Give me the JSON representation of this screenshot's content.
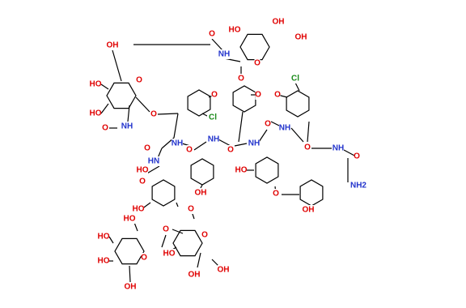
{
  "labels": [
    "O",
    "HO",
    "OH",
    "OH",
    "NH",
    "O",
    "O",
    "Cl",
    "O",
    "O",
    "O",
    "OH",
    "HO",
    "HO",
    "O",
    "NH",
    "O",
    "O",
    "Cl",
    "O",
    "HN",
    "HO",
    "O",
    "NH",
    "O",
    "NH",
    "O",
    "NH",
    "O",
    "NH",
    "O",
    "NH",
    "O",
    "NH2",
    "HO",
    "O",
    "OH",
    "OH",
    "HO",
    "O",
    "O",
    "HO",
    "HO",
    "O",
    "OH",
    "HO",
    "O",
    "OH",
    "OH",
    "HO"
  ]
}
